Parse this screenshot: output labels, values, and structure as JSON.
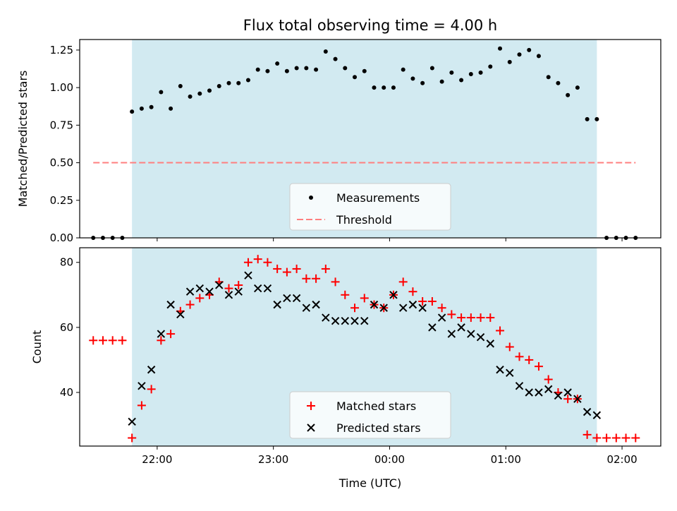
{
  "title": "Flux total observing time = 4.00 h",
  "colors": {
    "span": "#add8e6",
    "measurement": "#000000",
    "threshold": "#ff7f7f",
    "matched": "#ff0000",
    "predicted": "#000000"
  },
  "chart_data": [
    {
      "type": "scatter",
      "ylabel": "Matched/Predicted stars",
      "xlabel": "",
      "x_axis": "time (UTC)",
      "xlim": [
        "21:20",
        "02:20"
      ],
      "ylim": [
        0,
        1.32
      ],
      "yticks": [
        "0.00",
        "0.25",
        "0.50",
        "0.75",
        "1.00",
        "1.25"
      ],
      "xticks": [
        "22:00",
        "23:00",
        "00:00",
        "01:00",
        "02:00"
      ],
      "show_xtick_labels": false,
      "highlight_span": [
        "21:47",
        "01:47"
      ],
      "legend": {
        "position": "lower-center",
        "entries": [
          "Measurements",
          "Threshold"
        ]
      },
      "threshold": {
        "name": "Threshold",
        "y": 0.5,
        "x": [
          "21:27",
          "02:07"
        ]
      },
      "series": [
        {
          "name": "Measurements",
          "marker": "dot",
          "x": [
            "21:27",
            "21:32",
            "21:37",
            "21:42",
            "21:47",
            "21:52",
            "21:57",
            "22:02",
            "22:07",
            "22:12",
            "22:17",
            "22:22",
            "22:27",
            "22:32",
            "22:37",
            "22:42",
            "22:47",
            "22:52",
            "22:57",
            "23:02",
            "23:07",
            "23:12",
            "23:17",
            "23:22",
            "23:27",
            "23:32",
            "23:37",
            "23:42",
            "23:47",
            "23:52",
            "23:57",
            "00:02",
            "00:07",
            "00:12",
            "00:17",
            "00:22",
            "00:27",
            "00:32",
            "00:37",
            "00:42",
            "00:47",
            "00:52",
            "00:57",
            "01:02",
            "01:07",
            "01:12",
            "01:17",
            "01:22",
            "01:27",
            "01:32",
            "01:37",
            "01:42",
            "01:47",
            "01:52",
            "01:57",
            "02:02",
            "02:07"
          ],
          "y": [
            0.0,
            0.0,
            0.0,
            0.0,
            0.84,
            0.86,
            0.87,
            0.97,
            0.86,
            1.01,
            0.94,
            0.96,
            0.98,
            1.01,
            1.03,
            1.03,
            1.05,
            1.12,
            1.11,
            1.16,
            1.11,
            1.13,
            1.13,
            1.12,
            1.24,
            1.19,
            1.13,
            1.07,
            1.11,
            1.0,
            1.0,
            1.0,
            1.12,
            1.06,
            1.03,
            1.13,
            1.04,
            1.1,
            1.05,
            1.09,
            1.1,
            1.14,
            1.26,
            1.17,
            1.22,
            1.25,
            1.21,
            1.07,
            1.03,
            0.95,
            1.0,
            0.79,
            0.79,
            0.0,
            0.0,
            0.0,
            0.0
          ]
        }
      ]
    },
    {
      "type": "scatter",
      "ylabel": "Count",
      "xlabel": "Time (UTC)",
      "x_axis": "time (UTC)",
      "xlim": [
        "21:20",
        "02:20"
      ],
      "ylim": [
        23.5,
        84.5
      ],
      "yticks": [
        "40",
        "60",
        "80"
      ],
      "xticks": [
        "22:00",
        "23:00",
        "00:00",
        "01:00",
        "02:00"
      ],
      "show_xtick_labels": true,
      "highlight_span": [
        "21:47",
        "01:47"
      ],
      "legend": {
        "position": "lower-center",
        "entries": [
          "Matched stars",
          "Predicted stars"
        ]
      },
      "series": [
        {
          "name": "Matched stars",
          "marker": "plus",
          "x": [
            "21:27",
            "21:32",
            "21:37",
            "21:42",
            "21:47",
            "21:52",
            "21:57",
            "22:02",
            "22:07",
            "22:12",
            "22:17",
            "22:22",
            "22:27",
            "22:32",
            "22:37",
            "22:42",
            "22:47",
            "22:52",
            "22:57",
            "23:02",
            "23:07",
            "23:12",
            "23:17",
            "23:22",
            "23:27",
            "23:32",
            "23:37",
            "23:42",
            "23:47",
            "23:52",
            "23:57",
            "00:02",
            "00:07",
            "00:12",
            "00:17",
            "00:22",
            "00:27",
            "00:32",
            "00:37",
            "00:42",
            "00:47",
            "00:52",
            "00:57",
            "01:02",
            "01:07",
            "01:12",
            "01:17",
            "01:22",
            "01:27",
            "01:32",
            "01:37",
            "01:42",
            "01:47",
            "01:52",
            "01:57",
            "02:02",
            "02:07"
          ],
          "y": [
            56,
            56,
            56,
            56,
            26,
            36,
            41,
            56,
            58,
            65,
            67,
            69,
            70,
            74,
            72,
            73,
            80,
            81,
            80,
            78,
            77,
            78,
            75,
            75,
            78,
            74,
            70,
            66,
            69,
            67,
            66,
            70,
            74,
            71,
            68,
            68,
            66,
            64,
            63,
            63,
            63,
            63,
            59,
            54,
            51,
            50,
            48,
            44,
            40,
            38,
            38,
            27,
            26,
            26,
            26,
            26,
            26
          ]
        },
        {
          "name": "Predicted stars",
          "marker": "cross",
          "x": [
            "21:47",
            "21:52",
            "21:57",
            "22:02",
            "22:07",
            "22:12",
            "22:17",
            "22:22",
            "22:27",
            "22:32",
            "22:37",
            "22:42",
            "22:47",
            "22:52",
            "22:57",
            "23:02",
            "23:07",
            "23:12",
            "23:17",
            "23:22",
            "23:27",
            "23:32",
            "23:37",
            "23:42",
            "23:47",
            "23:52",
            "23:57",
            "00:02",
            "00:07",
            "00:12",
            "00:17",
            "00:22",
            "00:27",
            "00:32",
            "00:37",
            "00:42",
            "00:47",
            "00:52",
            "00:57",
            "01:02",
            "01:07",
            "01:12",
            "01:17",
            "01:22",
            "01:27",
            "01:32",
            "01:37",
            "01:42",
            "01:47"
          ],
          "y": [
            31,
            42,
            47,
            58,
            67,
            64,
            71,
            72,
            71,
            73,
            70,
            71,
            76,
            72,
            72,
            67,
            69,
            69,
            66,
            67,
            63,
            62,
            62,
            62,
            62,
            67,
            66,
            70,
            66,
            67,
            66,
            60,
            63,
            58,
            60,
            58,
            57,
            55,
            47,
            46,
            42,
            40,
            40,
            41,
            39,
            40,
            38,
            34,
            33
          ]
        }
      ]
    }
  ]
}
